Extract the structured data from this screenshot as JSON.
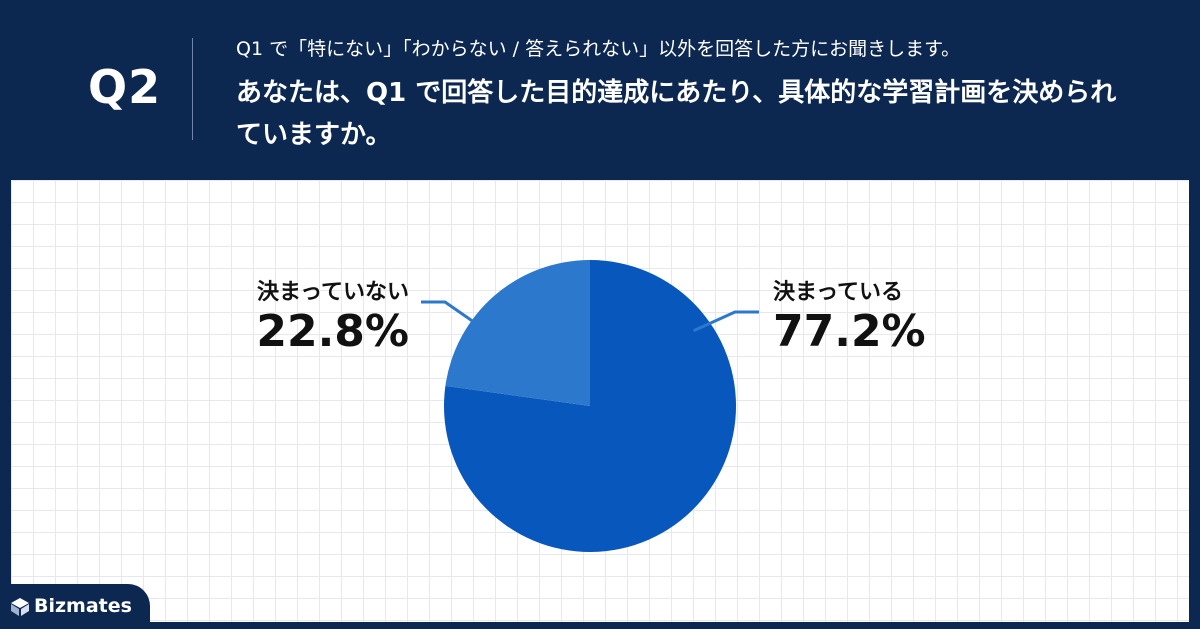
{
  "header": {
    "q_label": "Q2",
    "sub": "Q1 で「特にない」「わからない / 答えられない」以外を回答した方にお聞きします。",
    "question": "あなたは、Q1 で回答した目的達成にあたり、具体的な学習計画を決められていますか。"
  },
  "chart_data": {
    "type": "pie",
    "categories": [
      "決まっている",
      "決まっていない"
    ],
    "values": [
      77.2,
      22.8
    ],
    "value_labels": [
      "77.2%",
      "22.8%"
    ],
    "colors": [
      "#0757bd",
      "#2c78cc"
    ],
    "title": ""
  },
  "brand": {
    "name": "Bizmates"
  }
}
